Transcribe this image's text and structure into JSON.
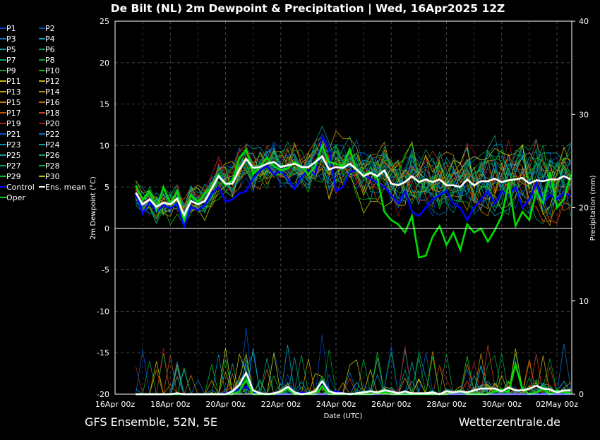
{
  "chart_data": {
    "type": "line",
    "title": "De Bilt  (NL)  2m Dewpoint & Precipitation | Wed, 16Apr2025 12Z",
    "xlabel": "Date (UTC)",
    "ylabel": "2m Dewpoint (°C)",
    "y2label": "Precipitation (mm)",
    "ylim": [
      -20,
      25
    ],
    "y2lim": [
      0,
      40
    ],
    "yticks": [
      25,
      20,
      15,
      10,
      5,
      0,
      -5,
      -10,
      -15,
      -20
    ],
    "y2ticks": [
      40,
      30,
      20,
      10,
      0
    ],
    "xticks": [
      "16Apr 00z",
      "18Apr 00z",
      "20Apr 00z",
      "22Apr 00z",
      "24Apr 00z",
      "26Apr 00z",
      "28Apr 00z",
      "30Apr 00z",
      "02May 00z"
    ],
    "x_start_hours": 18,
    "x_step_hours": 6,
    "grid": true,
    "legend_placement": "left",
    "footer_left": "GFS Ensemble, 52N, 5E",
    "footer_right": "Wetterzentrale.de",
    "members": [
      {
        "name": "P1",
        "color": "#0040c0"
      },
      {
        "name": "P2",
        "color": "#0050c0"
      },
      {
        "name": "P3",
        "color": "#0070c0"
      },
      {
        "name": "P4",
        "color": "#00a0c0"
      },
      {
        "name": "P5",
        "color": "#00a8b0"
      },
      {
        "name": "P6",
        "color": "#00a080"
      },
      {
        "name": "P7",
        "color": "#00a060"
      },
      {
        "name": "P8",
        "color": "#00a040"
      },
      {
        "name": "P9",
        "color": "#00a020"
      },
      {
        "name": "P10",
        "color": "#00c000"
      },
      {
        "name": "P11",
        "color": "#c0c000"
      },
      {
        "name": "P12",
        "color": "#c0b000"
      },
      {
        "name": "P13",
        "color": "#c0a000"
      },
      {
        "name": "P14",
        "color": "#c09000"
      },
      {
        "name": "P15",
        "color": "#c08000"
      },
      {
        "name": "P16",
        "color": "#c07000"
      },
      {
        "name": "P17",
        "color": "#c05000"
      },
      {
        "name": "P18",
        "color": "#c04020"
      },
      {
        "name": "P19",
        "color": "#a02020"
      },
      {
        "name": "P20",
        "color": "#a01010"
      },
      {
        "name": "P21",
        "color": "#0050c0"
      },
      {
        "name": "P22",
        "color": "#0070c0"
      },
      {
        "name": "P23",
        "color": "#0090c0"
      },
      {
        "name": "P24",
        "color": "#00a8c0"
      },
      {
        "name": "P25",
        "color": "#00a090"
      },
      {
        "name": "P26",
        "color": "#00a070"
      },
      {
        "name": "P27",
        "color": "#00a050"
      },
      {
        "name": "P28",
        "color": "#00b040"
      },
      {
        "name": "P29",
        "color": "#00c020"
      },
      {
        "name": "P30",
        "color": "#c0c000"
      }
    ],
    "series": [
      {
        "name": "Control",
        "color": "#0000ff",
        "dewpoint": [
          4.2,
          1.8,
          3.2,
          2.0,
          2.8,
          2.4,
          3.0,
          0.2,
          2.6,
          2.2,
          2.8,
          4.2,
          5.0,
          3.2,
          3.5,
          4.2,
          4.5,
          6.0,
          7.0,
          7.5,
          6.5,
          7.0,
          6.0,
          4.8,
          6.2,
          7.0,
          6.5,
          11.0,
          9.5,
          4.5,
          5.0,
          6.8,
          7.0,
          6.5,
          6.0,
          5.5,
          5.0,
          4.0,
          3.0,
          4.5,
          2.0,
          1.5,
          2.5,
          3.5,
          4.0,
          4.5,
          3.0,
          2.5,
          1.0,
          2.5,
          3.5,
          4.5,
          3.0,
          4.5,
          4.0,
          5.0,
          2.5,
          3.5,
          5.5,
          3.0,
          4.0,
          3.5,
          4.2,
          4.0
        ],
        "precip": [
          0,
          0,
          0,
          0,
          0,
          0,
          0,
          0,
          0,
          0,
          0,
          0,
          0,
          0.1,
          0,
          0.5,
          0.8,
          0.2,
          0,
          0,
          0,
          0,
          0,
          0.1,
          0.2,
          0,
          0,
          0,
          0,
          0.3,
          0.1,
          0,
          0,
          0,
          0,
          0,
          0.2,
          0,
          0,
          0,
          0,
          0,
          0,
          0,
          0,
          0,
          0,
          0,
          0,
          0,
          0,
          0,
          0,
          0,
          0,
          0,
          0,
          0,
          0,
          0,
          0,
          0,
          0,
          0
        ]
      },
      {
        "name": "Ens. mean",
        "color": "#ffffff",
        "dewpoint": [
          4.3,
          2.9,
          3.5,
          2.6,
          3.1,
          2.9,
          3.6,
          1.6,
          3.3,
          2.9,
          3.3,
          4.8,
          6.3,
          5.4,
          5.4,
          7.1,
          8.4,
          7.3,
          7.4,
          7.8,
          8.0,
          7.4,
          7.6,
          7.8,
          7.4,
          7.4,
          8.0,
          8.7,
          7.1,
          7.4,
          7.3,
          7.8,
          7.1,
          6.3,
          6.7,
          6.3,
          7.0,
          5.4,
          5.2,
          5.6,
          6.3,
          5.6,
          5.9,
          5.6,
          5.9,
          5.2,
          5.2,
          5.0,
          5.9,
          5.2,
          5.7,
          5.7,
          6.0,
          5.6,
          5.8,
          5.9,
          6.1,
          5.4,
          5.8,
          5.7,
          5.9,
          5.9,
          6.3,
          5.9
        ],
        "precip": [
          0,
          0,
          0,
          0,
          0,
          0,
          0.1,
          0,
          0,
          0,
          0,
          0,
          0,
          0,
          0.3,
          1.0,
          2.3,
          0.4,
          0.1,
          0,
          0.1,
          0.3,
          0.8,
          0.2,
          0,
          0.1,
          0.3,
          1.4,
          0.3,
          0.1,
          0.1,
          0,
          0.1,
          0.2,
          0.3,
          0.2,
          0.4,
          0.3,
          0.1,
          0.3,
          0.1,
          0.1,
          0.1,
          0.2,
          0,
          0.3,
          0.2,
          0.3,
          0.2,
          0.4,
          0.6,
          0.6,
          0.6,
          0.3,
          0.7,
          0.4,
          0.4,
          0.6,
          0.9,
          0.6,
          0.5,
          0.2,
          0.4,
          0.4
        ]
      },
      {
        "name": "Oper",
        "color": "#00dd00",
        "dewpoint": [
          5.2,
          3.5,
          4.5,
          2.2,
          5.0,
          3.0,
          4.5,
          1.0,
          4.0,
          3.2,
          4.2,
          5.0,
          6.5,
          5.2,
          5.8,
          8.5,
          9.5,
          6.5,
          7.5,
          8.5,
          7.5,
          7.0,
          7.2,
          8.0,
          7.5,
          6.5,
          7.5,
          10.0,
          8.0,
          7.8,
          7.5,
          9.5,
          7.0,
          6.5,
          6.8,
          6.0,
          2.0,
          1.0,
          0.5,
          -0.5,
          1.5,
          -3.5,
          -3.3,
          -1.0,
          0.3,
          -2.0,
          -0.5,
          -2.6,
          0.5,
          -0.5,
          0.0,
          -1.6,
          -0.2,
          1.5,
          5.5,
          0.3,
          2.0,
          1.0,
          4.5,
          3.0,
          6.8,
          2.5,
          3.5,
          6.5
        ],
        "precip": [
          0,
          0,
          0,
          0,
          0,
          0,
          0,
          0,
          0,
          0,
          0,
          0,
          0,
          0,
          0,
          0.3,
          1.5,
          0,
          0,
          0,
          0,
          0.2,
          0.6,
          0,
          0,
          0,
          0,
          0.8,
          0,
          0,
          0,
          0,
          0,
          0,
          0,
          0.1,
          0.2,
          0,
          0,
          0,
          0,
          0,
          0,
          0,
          0,
          0,
          0.2,
          0.4,
          0,
          0,
          0,
          0,
          0.3,
          0.5,
          0.2,
          3.2,
          0.5,
          0,
          0.2,
          0.5,
          0,
          0.4,
          0.2,
          0.1
        ]
      }
    ]
  }
}
